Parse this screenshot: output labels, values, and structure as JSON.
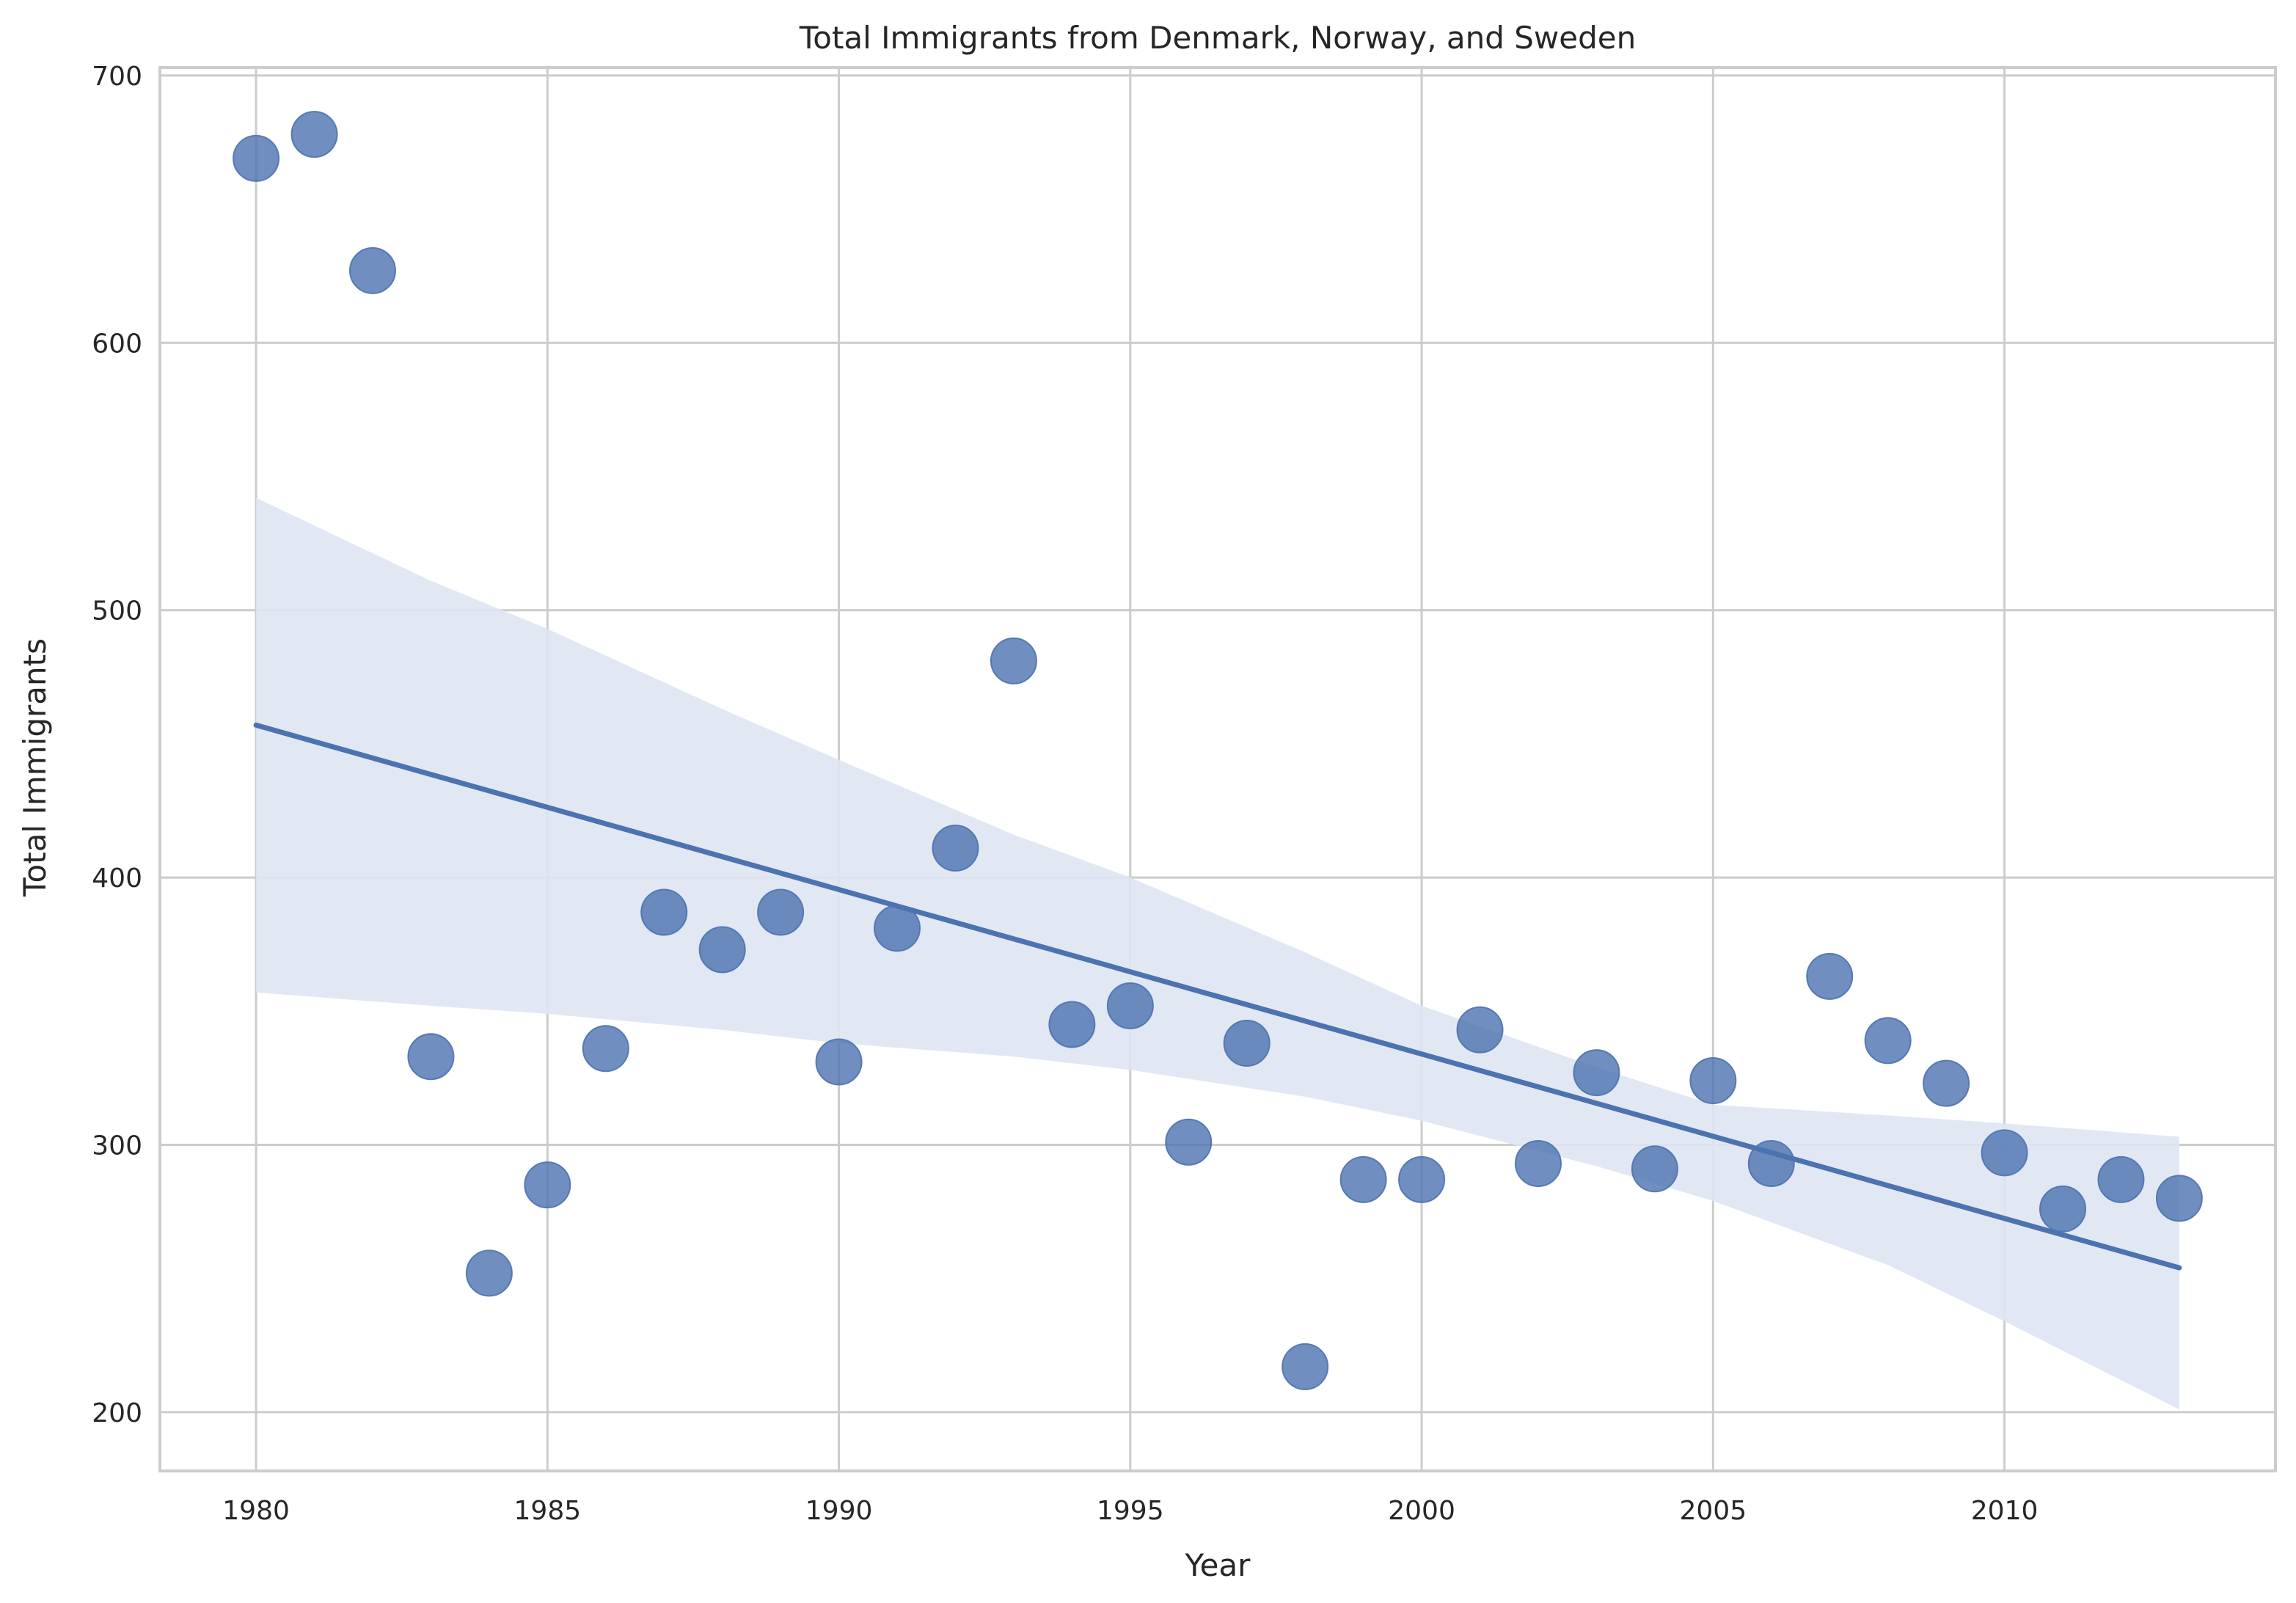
{
  "chart_data": {
    "type": "scatter",
    "title": "Total Immigrants from Denmark, Norway, and Sweden",
    "xlabel": "Year",
    "ylabel": "Total Immigrants",
    "xlim": [
      1978.35,
      2014.65
    ],
    "ylim": [
      178,
      703
    ],
    "xticks": [
      1980,
      1985,
      1990,
      1995,
      2000,
      2005,
      2010
    ],
    "yticks": [
      200,
      300,
      400,
      500,
      600,
      700
    ],
    "grid": true,
    "legend": "none",
    "colors": {
      "points": "#4c72b0",
      "line": "#4c72b0",
      "band": "#dfe6f2",
      "grid": "#cccccc",
      "spine": "#cccccc",
      "text": "#262626"
    },
    "series": [
      {
        "x": [
          1980,
          1981,
          1982,
          1983,
          1984,
          1985,
          1986,
          1987,
          1988,
          1989,
          1990,
          1991,
          1992,
          1993,
          1994,
          1995,
          1996,
          1997,
          1998,
          1999,
          2000,
          2001,
          2002,
          2003,
          2004,
          2005,
          2006,
          2007,
          2008,
          2009,
          2010,
          2011,
          2012,
          2013
        ],
        "values": [
          669,
          678,
          627,
          333,
          252,
          285,
          336,
          387,
          373,
          387,
          331,
          381,
          411,
          481,
          345,
          352,
          301,
          338,
          217,
          287,
          287,
          343,
          293,
          327,
          291,
          324,
          293,
          363,
          339,
          323,
          297,
          276,
          287,
          280
        ]
      }
    ],
    "regression": {
      "x": [
        1980,
        2013
      ],
      "values": [
        457,
        254
      ]
    },
    "confidence_band": {
      "x": [
        1980,
        1983,
        1985,
        1988,
        1990,
        1993,
        1995,
        1998,
        2000,
        2003,
        2005,
        2008,
        2010,
        2013
      ],
      "upper": [
        542,
        511,
        493,
        463,
        444,
        416,
        400,
        372,
        352,
        329,
        315,
        311,
        308,
        303
      ],
      "lower": [
        357,
        352,
        349,
        343,
        338,
        333,
        328,
        318,
        309,
        292,
        279,
        255,
        234,
        201
      ]
    }
  }
}
